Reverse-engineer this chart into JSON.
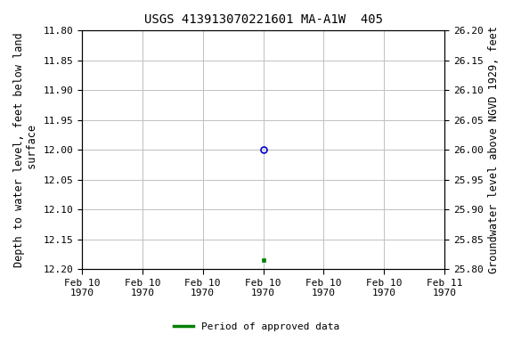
{
  "title": "USGS 413913070221601 MA-A1W  405",
  "ylabel_left": "Depth to water level, feet below land\n surface",
  "ylabel_right": "Groundwater level above NGVD 1929, feet",
  "ylim_left": [
    12.2,
    11.8
  ],
  "ylim_right": [
    25.8,
    26.2
  ],
  "yticks_left": [
    11.8,
    11.85,
    11.9,
    11.95,
    12.0,
    12.05,
    12.1,
    12.15,
    12.2
  ],
  "yticks_right": [
    26.2,
    26.15,
    26.1,
    26.05,
    26.0,
    25.95,
    25.9,
    25.85,
    25.8
  ],
  "data_point_x_hours": 12,
  "data_point_y_circle": 12.0,
  "data_point_y_square": 12.185,
  "circle_color": "#0000cc",
  "square_color": "#008000",
  "bg_color": "#ffffff",
  "grid_color": "#c0c0c0",
  "legend_label": "Period of approved data",
  "legend_color": "#008000",
  "font_color": "#000000",
  "title_fontsize": 10,
  "label_fontsize": 8.5,
  "tick_fontsize": 8,
  "x_tick_hours": [
    0,
    4,
    8,
    12,
    16,
    20,
    24
  ],
  "x_tick_labels": [
    "Feb 10\n1970",
    "Feb 10\n1970",
    "Feb 10\n1970",
    "Feb 10\n1970",
    "Feb 10\n1970",
    "Feb 10\n1970",
    "Feb 11\n1970"
  ]
}
